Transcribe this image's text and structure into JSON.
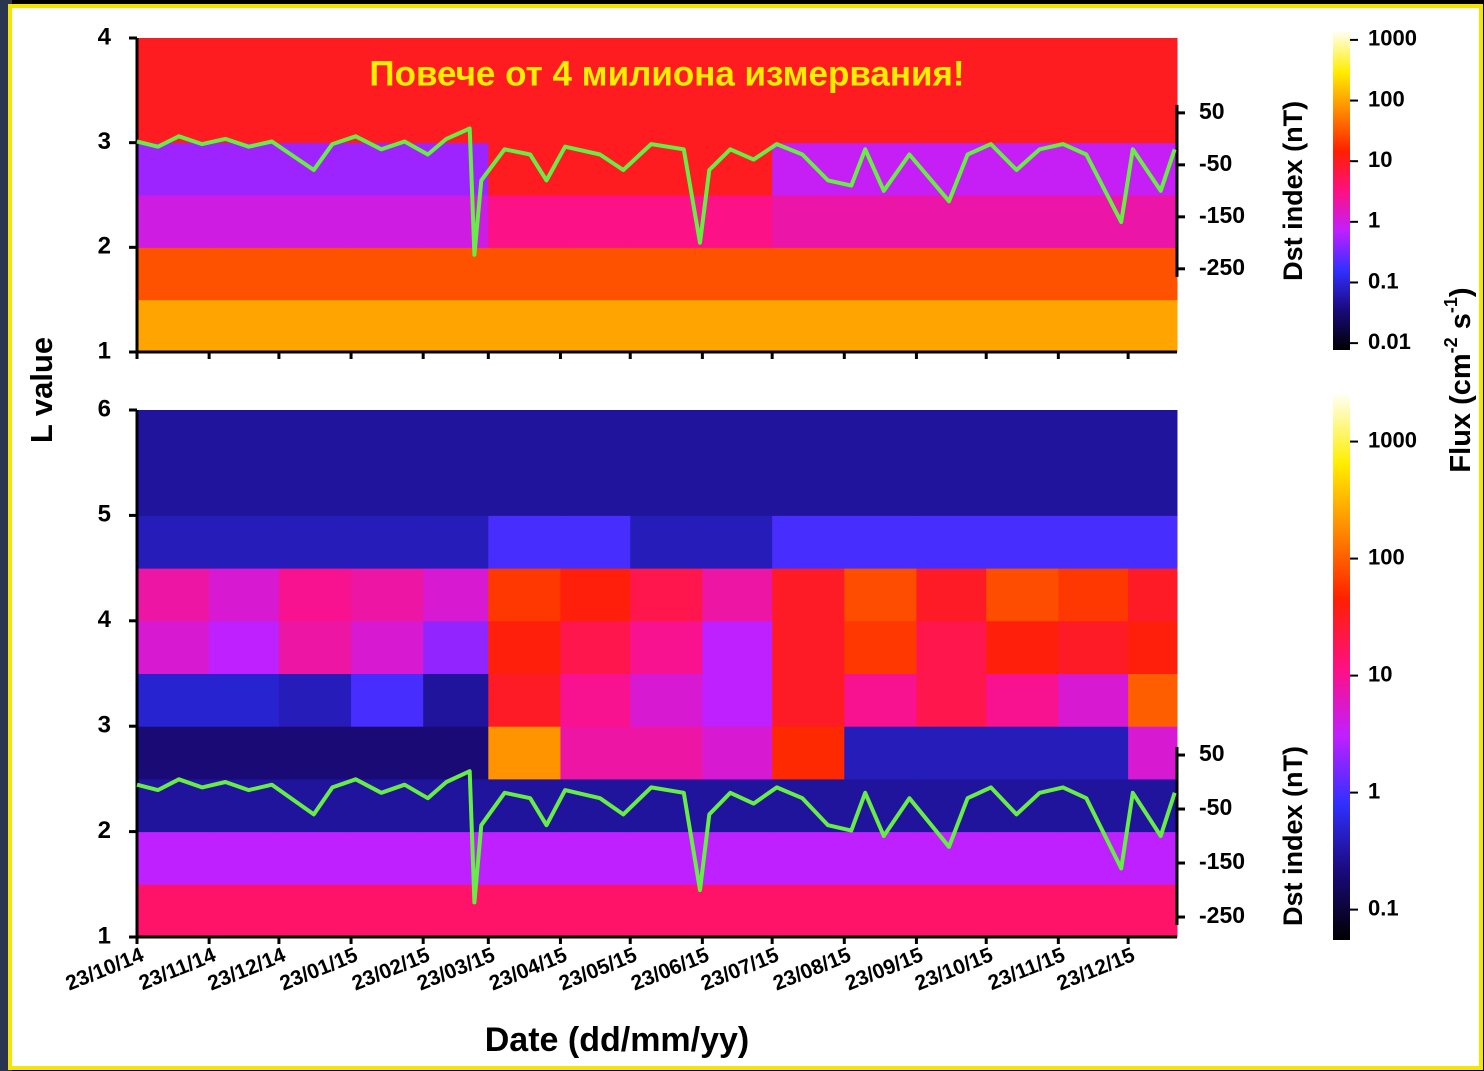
{
  "chart_data": [
    {
      "type": "heatmap",
      "annotation": "Повече от 4 милиона измервания!",
      "ylabel": "L value",
      "xlim": [
        "23/10/14",
        "13/01/16"
      ],
      "xticks": [
        "23/10/14",
        "23/11/14",
        "23/12/14",
        "23/01/15",
        "23/02/15",
        "23/03/15",
        "23/04/15",
        "23/05/15",
        "23/06/15",
        "23/07/15",
        "23/08/15",
        "23/09/15",
        "23/10/15",
        "23/11/15",
        "23/12/15"
      ],
      "ylim": [
        1,
        4
      ],
      "yticks": [
        1,
        2,
        3,
        4
      ],
      "y_bins": [
        1,
        1.5,
        2,
        2.5,
        3,
        3.5,
        4
      ],
      "flux": [
        [
          100,
          100,
          100,
          100,
          100,
          100,
          100,
          100,
          100,
          100,
          100,
          100,
          100,
          100,
          100
        ],
        [
          30,
          30,
          30,
          30,
          30,
          30,
          30,
          30,
          30,
          30,
          30,
          30,
          30,
          30,
          30
        ],
        [
          1,
          1,
          1,
          1,
          1,
          3,
          3,
          3,
          3,
          2,
          2,
          2,
          2,
          2,
          2
        ],
        [
          0.5,
          0.5,
          0.5,
          0.5,
          0.5,
          10,
          10,
          10,
          10,
          0.8,
          0.8,
          0.8,
          0.8,
          0.8,
          0.8
        ],
        [
          10,
          10,
          10,
          10,
          10,
          10,
          10,
          10,
          10,
          10,
          10,
          10,
          10,
          10,
          10
        ],
        [
          10,
          10,
          10,
          10,
          10,
          10,
          10,
          10,
          10,
          10,
          10,
          10,
          10,
          10,
          10
        ]
      ],
      "clim": [
        0.0077,
        1350
      ],
      "colorbar_ticks": [
        1000,
        100,
        10,
        1,
        0.1,
        0.01
      ],
      "colormap": [
        "#000000",
        "#1a0a7a",
        "#3030ff",
        "#c020ff",
        "#ff1080",
        "#ff2000",
        "#ff8800",
        "#ffee00",
        "#fffff0"
      ],
      "y2label": "Dst index (nT)",
      "y2lim": [
        -410,
        194
      ],
      "y2ticks": [
        50,
        -50,
        -150,
        -250
      ],
      "dst": {
        "color": "#66ee44",
        "axis": "y2",
        "x": [
          "23/10/14",
          "01/11/14",
          "10/11/14",
          "20/11/14",
          "30/11/14",
          "10/12/14",
          "20/12/14",
          "07/01/15",
          "15/01/15",
          "25/01/15",
          "05/02/15",
          "15/02/15",
          "25/02/15",
          "05/03/15",
          "15/03/15",
          "17/03/15",
          "20/03/15",
          "30/03/15",
          "10/04/15",
          "17/04/15",
          "25/04/15",
          "10/05/15",
          "20/05/15",
          "01/06/15",
          "15/06/15",
          "22/06/15",
          "26/06/15",
          "05/07/15",
          "15/07/15",
          "25/07/15",
          "05/08/15",
          "16/08/15",
          "26/08/15",
          "01/09/15",
          "09/09/15",
          "20/09/15",
          "07/10/15",
          "15/10/15",
          "25/10/15",
          "05/11/15",
          "15/11/15",
          "25/11/15",
          "05/12/15",
          "20/12/15",
          "25/12/15",
          "06/01/16",
          "12/01/16"
        ],
        "values": [
          -5,
          -15,
          5,
          -10,
          0,
          -15,
          -5,
          -60,
          -10,
          5,
          -20,
          -5,
          -30,
          0,
          20,
          -223,
          -80,
          -20,
          -30,
          -80,
          -15,
          -30,
          -60,
          -10,
          -20,
          -200,
          -60,
          -20,
          -40,
          -10,
          -30,
          -80,
          -90,
          -20,
          -100,
          -30,
          -120,
          -30,
          -10,
          -60,
          -20,
          -10,
          -30,
          -160,
          -20,
          -100,
          -20
        ]
      }
    },
    {
      "type": "heatmap",
      "xlabel": "Date (dd/mm/yy)",
      "colorbar_label": [
        "Flux (cm",
        "-2",
        " s",
        "-1",
        ")"
      ],
      "xlim": [
        "23/10/14",
        "13/01/16"
      ],
      "xticks": [
        "23/10/14",
        "23/11/14",
        "23/12/14",
        "23/01/15",
        "23/02/15",
        "23/03/15",
        "23/04/15",
        "23/05/15",
        "23/06/15",
        "23/07/15",
        "23/08/15",
        "23/09/15",
        "23/10/15",
        "23/11/15",
        "23/12/15"
      ],
      "ylim": [
        1,
        6
      ],
      "yticks": [
        1,
        2,
        3,
        4,
        5,
        6
      ],
      "y_bins": [
        1,
        1.5,
        2,
        2.5,
        3,
        3.5,
        4,
        4.5,
        5,
        5.5,
        6
      ],
      "flux": [
        [
          15,
          15,
          15,
          15,
          15,
          15,
          15,
          15,
          15,
          15,
          15,
          15,
          15,
          15,
          15
        ],
        [
          3,
          3,
          3,
          3,
          3,
          3,
          3,
          3,
          3,
          3,
          3,
          3,
          3,
          3,
          3
        ],
        [
          0.3,
          0.3,
          0.3,
          0.3,
          0.3,
          0.3,
          0.3,
          0.3,
          0.3,
          0.3,
          0.3,
          0.3,
          0.3,
          0.3,
          0.3
        ],
        [
          0.2,
          0.2,
          0.2,
          0.2,
          0.2,
          200,
          8,
          8,
          5,
          50,
          0.4,
          0.4,
          0.4,
          0.4,
          5
        ],
        [
          0.5,
          0.5,
          0.4,
          1,
          0.3,
          30,
          10,
          5,
          3,
          30,
          10,
          20,
          10,
          5,
          100
        ],
        [
          5,
          3,
          8,
          5,
          2,
          40,
          20,
          10,
          3,
          30,
          60,
          20,
          40,
          30,
          40
        ],
        [
          8,
          5,
          10,
          8,
          5,
          60,
          40,
          20,
          8,
          30,
          80,
          30,
          80,
          60,
          30
        ],
        [
          0.4,
          0.4,
          0.4,
          0.4,
          0.4,
          1,
          1,
          0.4,
          0.4,
          1,
          1,
          1,
          1,
          1,
          1
        ],
        [
          0.3,
          0.3,
          0.3,
          0.3,
          0.3,
          0.3,
          0.3,
          0.3,
          0.3,
          0.3,
          0.3,
          0.3,
          0.3,
          0.3,
          0.3
        ],
        [
          0.3,
          0.3,
          0.3,
          0.3,
          0.3,
          0.3,
          0.3,
          0.3,
          0.3,
          0.3,
          0.3,
          0.3,
          0.3,
          0.3,
          0.3
        ]
      ],
      "clim": [
        0.055,
        2500
      ],
      "colorbar_ticks": [
        1000,
        100,
        10,
        1,
        0.1
      ],
      "colormap": [
        "#000000",
        "#1a0a7a",
        "#3030ff",
        "#c020ff",
        "#ff1080",
        "#ff2000",
        "#ff8800",
        "#ffee00",
        "#fffff0"
      ],
      "y2label": "Dst index (nT)",
      "y2lim": [
        -287,
        689
      ],
      "y2ticks": [
        50,
        -50,
        -150,
        -250
      ],
      "dst": {
        "color": "#66ee44",
        "axis": "y2",
        "x": [
          "23/10/14",
          "01/11/14",
          "10/11/14",
          "20/11/14",
          "30/11/14",
          "10/12/14",
          "20/12/14",
          "07/01/15",
          "15/01/15",
          "25/01/15",
          "05/02/15",
          "15/02/15",
          "25/02/15",
          "05/03/15",
          "15/03/15",
          "17/03/15",
          "20/03/15",
          "30/03/15",
          "10/04/15",
          "17/04/15",
          "25/04/15",
          "10/05/15",
          "20/05/15",
          "01/06/15",
          "15/06/15",
          "22/06/15",
          "26/06/15",
          "05/07/15",
          "15/07/15",
          "25/07/15",
          "05/08/15",
          "16/08/15",
          "26/08/15",
          "01/09/15",
          "09/09/15",
          "20/09/15",
          "07/10/15",
          "15/10/15",
          "25/10/15",
          "05/11/15",
          "15/11/15",
          "25/11/15",
          "05/12/15",
          "20/12/15",
          "25/12/15",
          "06/01/16",
          "12/01/16"
        ],
        "values": [
          -5,
          -15,
          5,
          -10,
          0,
          -15,
          -5,
          -60,
          -10,
          5,
          -20,
          -5,
          -30,
          0,
          20,
          -223,
          -80,
          -20,
          -30,
          -80,
          -15,
          -30,
          -60,
          -10,
          -20,
          -200,
          -60,
          -20,
          -40,
          -10,
          -30,
          -80,
          -90,
          -20,
          -100,
          -30,
          -120,
          -30,
          -10,
          -60,
          -20,
          -10,
          -30,
          -160,
          -20,
          -100,
          -20
        ]
      }
    }
  ]
}
